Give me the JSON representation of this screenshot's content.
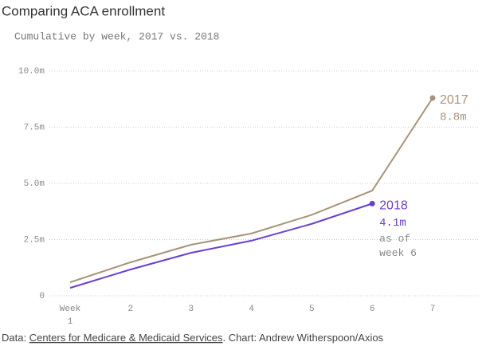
{
  "chart_data": {
    "type": "line",
    "title": "Comparing ACA enrollment",
    "subtitle": "Cumulative by week, 2017 vs. 2018",
    "categories": [
      "Week 1",
      "2",
      "3",
      "4",
      "5",
      "6",
      "7"
    ],
    "series": [
      {
        "name": "2017",
        "color": "#a89279",
        "values": [
          0.6,
          1.49,
          2.27,
          2.77,
          3.6,
          4.68,
          8.8
        ],
        "value_labels": [
          null,
          null,
          null,
          null,
          null,
          null,
          "8.8m"
        ]
      },
      {
        "name": "2018",
        "color": "#6a3fd0",
        "values": [
          0.35,
          1.17,
          1.91,
          2.45,
          3.2,
          4.1,
          null
        ],
        "value_labels": [
          null,
          null,
          null,
          null,
          null,
          "4.1m",
          null
        ]
      }
    ],
    "annotation": [
      "as of",
      "week 6"
    ],
    "ylim": [
      0,
      10
    ],
    "yticks": [
      0,
      {
        "value": 2.5,
        "label": "2.5m"
      },
      {
        "value": 5,
        "label": "5.0m"
      },
      {
        "value": 7.5,
        "label": "7.5m"
      },
      {
        "value": 10,
        "label": "10.0m"
      }
    ],
    "grid": true,
    "source": {
      "label": "Data:",
      "link": "Centers for Medicare & Medicaid Services",
      "credit": ". Chart: Andrew Witherspoon/Axios"
    }
  }
}
